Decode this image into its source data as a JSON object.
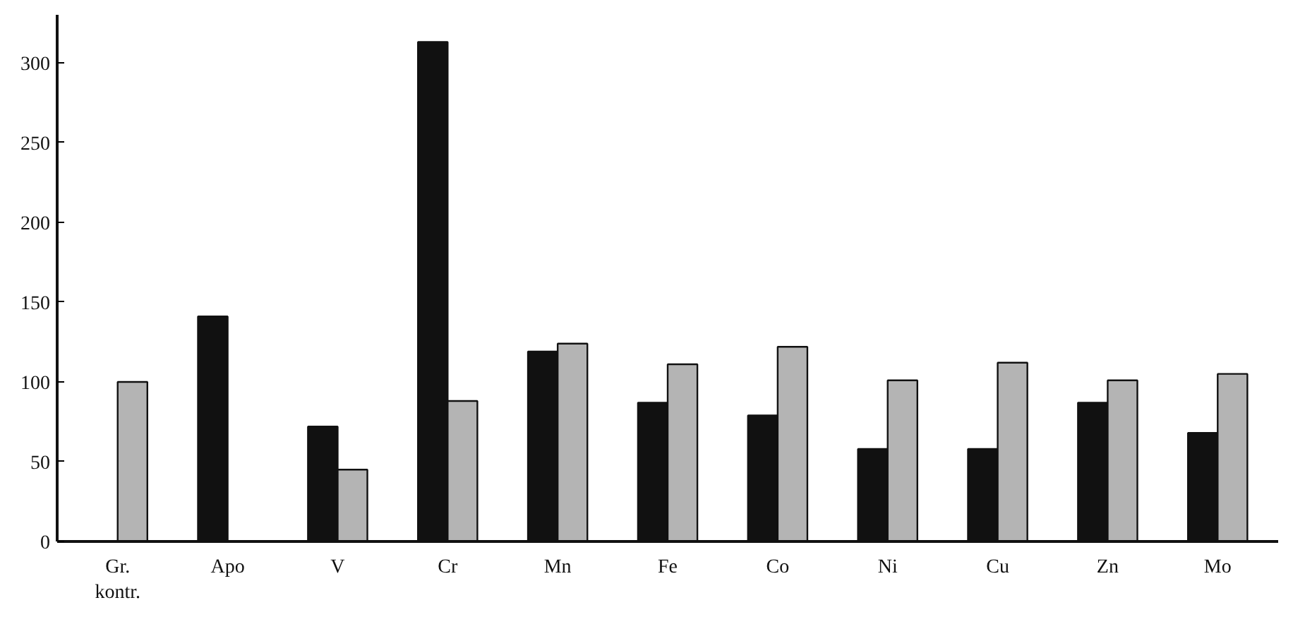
{
  "chart_data": {
    "type": "bar",
    "categories": [
      "Gr.\nkontr.",
      "Apo",
      "V",
      "Cr",
      "Mn",
      "Fe",
      "Co",
      "Ni",
      "Cu",
      "Zn",
      "Mo"
    ],
    "series": [
      {
        "color": "#111111",
        "values": [
          null,
          141,
          72,
          313,
          119,
          87,
          79,
          58,
          58,
          87,
          68
        ]
      },
      {
        "color": "#b4b4b4",
        "values": [
          100,
          null,
          45,
          88,
          124,
          111,
          122,
          101,
          112,
          101,
          105
        ]
      }
    ],
    "ylim": [
      0,
      330
    ],
    "yticks": [
      0,
      50,
      100,
      150,
      200,
      250,
      300
    ],
    "grid": false
  }
}
